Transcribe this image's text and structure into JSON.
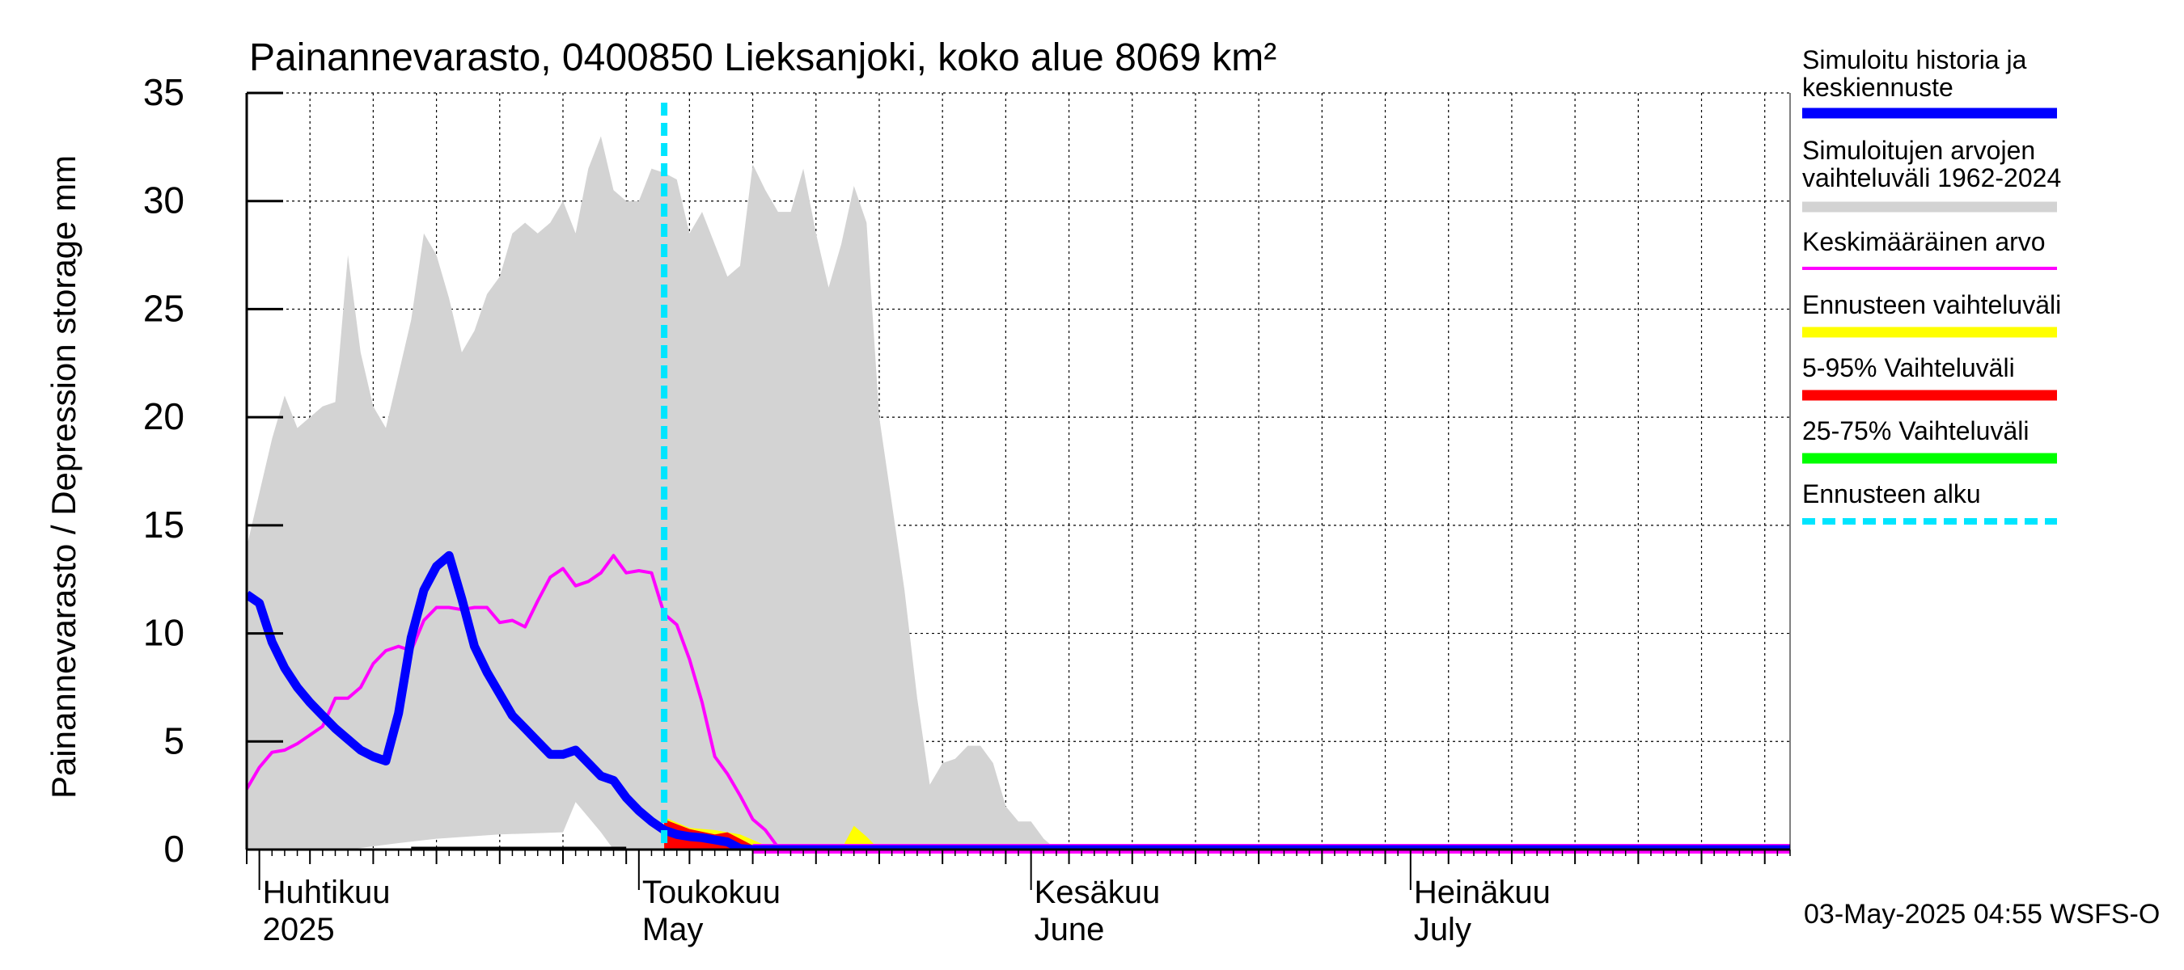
{
  "chart_data": {
    "type": "line",
    "title": "Painannevarasto, 0400850 Lieksanjoki, koko alue 8069 km²",
    "ylabel": "Painannevarasto / Depression storage    mm",
    "ylim": [
      0,
      35
    ],
    "yticks": [
      0,
      5,
      10,
      15,
      20,
      25,
      30,
      35
    ],
    "xlim": [
      "2025-03-31",
      "2025-07-31"
    ],
    "grid": true,
    "legend_position": "right",
    "month_labels": [
      {
        "date": "2025-04-01",
        "line1": "Huhtikuu",
        "line2": "2025"
      },
      {
        "date": "2025-05-01",
        "line1": "Toukokuu",
        "line2": "May"
      },
      {
        "date": "2025-06-01",
        "line1": "Kesäkuu",
        "line2": "June"
      },
      {
        "date": "2025-07-01",
        "line1": "Heinäkuu",
        "line2": "July"
      }
    ],
    "forecast_start": "2025-05-03",
    "footer": "03-May-2025 04:55 WSFS-O",
    "legend": [
      {
        "label": "Simuloitu historia ja keskiennuste",
        "color": "#0000ff"
      },
      {
        "label": "Simuloitujen arvojen vaihteluväli 1962-2024",
        "color": "#d3d3d3"
      },
      {
        "label": "Keskimääräinen arvo",
        "color": "#ff00ff"
      },
      {
        "label": "Ennusteen vaihteluväli",
        "color": "#ffff00"
      },
      {
        "label": "5-95% Vaihteluväli",
        "color": "#ff0000"
      },
      {
        "label": "25-75% Vaihteluväli",
        "color": "#00ff00"
      },
      {
        "label": "Ennusteen alku",
        "color": "#00e5ff"
      }
    ],
    "range_band": {
      "name": "Simuloitujen arvojen vaihteluväli 1962-2024",
      "color": "#d3d3d3",
      "upper": [
        [
          "2025-03-31",
          14
        ],
        [
          "2025-04-02",
          19
        ],
        [
          "2025-04-03",
          21
        ],
        [
          "2025-04-04",
          19.5
        ],
        [
          "2025-04-05",
          20
        ],
        [
          "2025-04-06",
          20.5
        ],
        [
          "2025-04-07",
          20.7
        ],
        [
          "2025-04-08",
          27.5
        ],
        [
          "2025-04-09",
          23
        ],
        [
          "2025-04-10",
          20.5
        ],
        [
          "2025-04-11",
          19.5
        ],
        [
          "2025-04-12",
          22
        ],
        [
          "2025-04-13",
          24.5
        ],
        [
          "2025-04-14",
          28.5
        ],
        [
          "2025-04-15",
          27.5
        ],
        [
          "2025-04-16",
          25.5
        ],
        [
          "2025-04-17",
          23
        ],
        [
          "2025-04-18",
          24
        ],
        [
          "2025-04-19",
          25.7
        ],
        [
          "2025-04-20",
          26.5
        ],
        [
          "2025-04-21",
          28.5
        ],
        [
          "2025-04-22",
          29
        ],
        [
          "2025-04-23",
          28.5
        ],
        [
          "2025-04-24",
          29
        ],
        [
          "2025-04-25",
          30
        ],
        [
          "2025-04-26",
          28.5
        ],
        [
          "2025-04-27",
          31.5
        ],
        [
          "2025-04-28",
          33
        ],
        [
          "2025-04-29",
          30.5
        ],
        [
          "2025-04-30",
          30
        ],
        [
          "2025-05-01",
          30
        ],
        [
          "2025-05-02",
          31.5
        ],
        [
          "2025-05-03",
          31.3
        ],
        [
          "2025-05-04",
          31
        ],
        [
          "2025-05-05",
          28.5
        ],
        [
          "2025-05-06",
          29.5
        ],
        [
          "2025-05-07",
          28
        ],
        [
          "2025-05-08",
          26.5
        ],
        [
          "2025-05-09",
          27
        ],
        [
          "2025-05-10",
          31.7
        ],
        [
          "2025-05-11",
          30.5
        ],
        [
          "2025-05-12",
          29.5
        ],
        [
          "2025-05-13",
          29.5
        ],
        [
          "2025-05-14",
          31.5
        ],
        [
          "2025-05-15",
          28.5
        ],
        [
          "2025-05-16",
          26
        ],
        [
          "2025-05-17",
          28
        ],
        [
          "2025-05-18",
          30.7
        ],
        [
          "2025-05-19",
          29
        ],
        [
          "2025-05-20",
          20
        ],
        [
          "2025-05-21",
          16
        ],
        [
          "2025-05-22",
          12
        ],
        [
          "2025-05-23",
          7
        ],
        [
          "2025-05-24",
          3
        ],
        [
          "2025-05-25",
          4
        ],
        [
          "2025-05-26",
          4.2
        ],
        [
          "2025-05-27",
          4.8
        ],
        [
          "2025-05-28",
          4.8
        ],
        [
          "2025-05-29",
          4
        ],
        [
          "2025-05-30",
          2
        ],
        [
          "2025-05-31",
          1.3
        ],
        [
          "2025-06-01",
          1.3
        ],
        [
          "2025-06-02",
          0.5
        ],
        [
          "2025-06-03",
          0
        ],
        [
          "2025-07-31",
          0
        ]
      ],
      "lower": [
        [
          "2025-03-31",
          0
        ],
        [
          "2025-04-08",
          0
        ],
        [
          "2025-04-12",
          0.3
        ],
        [
          "2025-04-15",
          0.5
        ],
        [
          "2025-04-20",
          0.7
        ],
        [
          "2025-04-25",
          0.8
        ],
        [
          "2025-04-26",
          2.2
        ],
        [
          "2025-04-27",
          1.5
        ],
        [
          "2025-04-28",
          0.8
        ],
        [
          "2025-04-29",
          0
        ],
        [
          "2025-07-31",
          0
        ]
      ]
    },
    "forecast_band": {
      "name": "Ennusteen vaihteluväli",
      "color": "#ffff00",
      "upper": [
        [
          "2025-05-03",
          1.5
        ],
        [
          "2025-05-05",
          1.0
        ],
        [
          "2025-05-07",
          0.9
        ],
        [
          "2025-05-09",
          0.7
        ],
        [
          "2025-05-11",
          0.2
        ],
        [
          "2025-05-13",
          0
        ],
        [
          "2025-05-17",
          0
        ],
        [
          "2025-05-18",
          1.1
        ],
        [
          "2025-05-19",
          0.6
        ],
        [
          "2025-05-20",
          0
        ],
        [
          "2025-07-31",
          0
        ]
      ]
    },
    "band_5_95": {
      "name": "5-95% Vaihteluväli",
      "color": "#ff0000",
      "upper": [
        [
          "2025-05-03",
          1.4
        ],
        [
          "2025-05-05",
          0.95
        ],
        [
          "2025-05-07",
          0.7
        ],
        [
          "2025-05-08",
          0.8
        ],
        [
          "2025-05-09",
          0.5
        ],
        [
          "2025-05-10",
          0.2
        ],
        [
          "2025-05-11",
          0
        ],
        [
          "2025-07-31",
          0
        ]
      ]
    },
    "series": [
      {
        "name": "Keskimääräinen arvo",
        "color": "#ff00ff",
        "values": [
          [
            "2025-03-31",
            2.8
          ],
          [
            "2025-04-01",
            3.8
          ],
          [
            "2025-04-02",
            4.5
          ],
          [
            "2025-04-03",
            4.6
          ],
          [
            "2025-04-04",
            4.9
          ],
          [
            "2025-04-05",
            5.3
          ],
          [
            "2025-04-06",
            5.7
          ],
          [
            "2025-04-07",
            7.0
          ],
          [
            "2025-04-08",
            7.0
          ],
          [
            "2025-04-09",
            7.5
          ],
          [
            "2025-04-10",
            8.6
          ],
          [
            "2025-04-11",
            9.2
          ],
          [
            "2025-04-12",
            9.4
          ],
          [
            "2025-04-13",
            9.2
          ],
          [
            "2025-04-14",
            10.6
          ],
          [
            "2025-04-15",
            11.2
          ],
          [
            "2025-04-16",
            11.2
          ],
          [
            "2025-04-17",
            11.1
          ],
          [
            "2025-04-18",
            11.2
          ],
          [
            "2025-04-19",
            11.2
          ],
          [
            "2025-04-20",
            10.5
          ],
          [
            "2025-04-21",
            10.6
          ],
          [
            "2025-04-22",
            10.3
          ],
          [
            "2025-04-23",
            11.5
          ],
          [
            "2025-04-24",
            12.6
          ],
          [
            "2025-04-25",
            13.0
          ],
          [
            "2025-04-26",
            12.2
          ],
          [
            "2025-04-27",
            12.4
          ],
          [
            "2025-04-28",
            12.8
          ],
          [
            "2025-04-29",
            13.6
          ],
          [
            "2025-04-30",
            12.8
          ],
          [
            "2025-05-01",
            12.9
          ],
          [
            "2025-05-02",
            12.8
          ],
          [
            "2025-05-03",
            10.9
          ],
          [
            "2025-05-04",
            10.4
          ],
          [
            "2025-05-05",
            8.8
          ],
          [
            "2025-05-06",
            6.8
          ],
          [
            "2025-05-07",
            4.3
          ],
          [
            "2025-05-08",
            3.5
          ],
          [
            "2025-05-09",
            2.5
          ],
          [
            "2025-05-10",
            1.4
          ],
          [
            "2025-05-11",
            0.9
          ],
          [
            "2025-05-12",
            0.1
          ],
          [
            "2025-05-13",
            0
          ],
          [
            "2025-07-31",
            0
          ]
        ]
      },
      {
        "name": "Simuloitu historia ja keskiennuste",
        "color": "#0000ff",
        "values": [
          [
            "2025-03-31",
            11.8
          ],
          [
            "2025-04-01",
            11.4
          ],
          [
            "2025-04-02",
            9.6
          ],
          [
            "2025-04-03",
            8.4
          ],
          [
            "2025-04-04",
            7.5
          ],
          [
            "2025-04-05",
            6.8
          ],
          [
            "2025-04-06",
            6.2
          ],
          [
            "2025-04-07",
            5.6
          ],
          [
            "2025-04-08",
            5.1
          ],
          [
            "2025-04-09",
            4.6
          ],
          [
            "2025-04-10",
            4.3
          ],
          [
            "2025-04-11",
            4.1
          ],
          [
            "2025-04-12",
            6.3
          ],
          [
            "2025-04-13",
            9.8
          ],
          [
            "2025-04-14",
            12.0
          ],
          [
            "2025-04-15",
            13.1
          ],
          [
            "2025-04-16",
            13.6
          ],
          [
            "2025-04-17",
            11.6
          ],
          [
            "2025-04-18",
            9.4
          ],
          [
            "2025-04-19",
            8.2
          ],
          [
            "2025-04-20",
            7.2
          ],
          [
            "2025-04-21",
            6.2
          ],
          [
            "2025-04-22",
            5.6
          ],
          [
            "2025-04-23",
            5.0
          ],
          [
            "2025-04-24",
            4.4
          ],
          [
            "2025-04-25",
            4.4
          ],
          [
            "2025-04-26",
            4.6
          ],
          [
            "2025-04-27",
            4.0
          ],
          [
            "2025-04-28",
            3.4
          ],
          [
            "2025-04-29",
            3.2
          ],
          [
            "2025-04-30",
            2.4
          ],
          [
            "2025-05-01",
            1.8
          ],
          [
            "2025-05-02",
            1.3
          ],
          [
            "2025-05-03",
            0.9
          ],
          [
            "2025-05-04",
            0.7
          ],
          [
            "2025-05-05",
            0.6
          ],
          [
            "2025-05-06",
            0.55
          ],
          [
            "2025-05-07",
            0.45
          ],
          [
            "2025-05-08",
            0.35
          ],
          [
            "2025-05-09",
            0.05
          ],
          [
            "2025-05-10",
            0
          ],
          [
            "2025-07-31",
            0
          ]
        ]
      }
    ]
  }
}
